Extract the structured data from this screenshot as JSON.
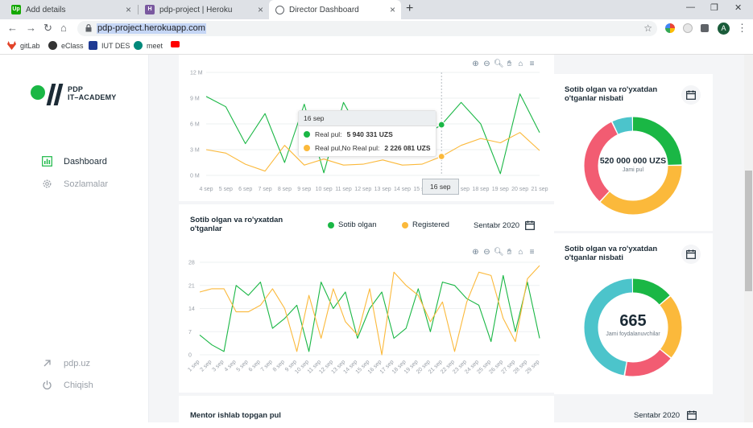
{
  "browser": {
    "tabs": [
      {
        "title": "Add details",
        "favicon": "upwork-icon",
        "favicon_text": "Up",
        "active": false
      },
      {
        "title": "pdp-project | Heroku",
        "favicon": "heroku-icon",
        "favicon_text": "H",
        "active": false
      },
      {
        "title": "Director Dashboard",
        "favicon": "globe-icon",
        "favicon_text": "",
        "active": true
      }
    ],
    "url": "pdp-project.herokuapp.com",
    "profile_initial": "A",
    "bookmarks": [
      {
        "label": "gitLab",
        "icon": "gitlab-icon",
        "color": "#e24329"
      },
      {
        "label": "eClass",
        "icon": "eclass-icon",
        "color": "#333333"
      },
      {
        "label": "IUT DES",
        "icon": "iut-icon",
        "color": "#1f3a93"
      },
      {
        "label": "meet",
        "icon": "meet-icon",
        "color": "#00897b"
      },
      {
        "label": "",
        "icon": "youtube-icon",
        "color": "#ff0000"
      }
    ]
  },
  "sidebar": {
    "logo_line1": "PDP",
    "logo_line2": "IT–ACADEMY",
    "nav": [
      {
        "label": "Dashboard",
        "icon": "chart-bar-icon",
        "active": true
      },
      {
        "label": "Sozlamalar",
        "icon": "gear-icon",
        "active": false
      }
    ],
    "footer": [
      {
        "label": "pdp.uz",
        "icon": "arrow-up-right-icon"
      },
      {
        "label": "Chiqish",
        "icon": "power-icon"
      }
    ]
  },
  "colors": {
    "green": "#1ab745",
    "orange": "#fbb93b",
    "red": "#f25c72",
    "teal": "#4cc4cb"
  },
  "chart1": {
    "chart_data": {
      "type": "line",
      "categories": [
        "4 sep",
        "5 sep",
        "6 sep",
        "7 sep",
        "8 sep",
        "9 sep",
        "10 sep",
        "11 sep",
        "12 sep",
        "13 sep",
        "14 sep",
        "15 sep",
        "16 sep",
        "17 sep",
        "18 sep",
        "19 sep",
        "20 sep",
        "21 sep"
      ],
      "y_ticks": [
        "0 M",
        "3 M",
        "6 M",
        "9 M",
        "12 M"
      ],
      "ylim": [
        0,
        12
      ],
      "series": [
        {
          "name": "Real pul",
          "color": "#1ab745",
          "values": [
            9.2,
            8.0,
            3.7,
            7.2,
            1.5,
            8.3,
            0.3,
            8.5,
            4.4,
            2.3,
            6.3,
            4.5,
            5.9,
            8.5,
            6.0,
            0.2,
            9.5,
            5.0
          ]
        },
        {
          "name": "Real pul,No Real pul",
          "color": "#fbb93b",
          "values": [
            3.0,
            2.6,
            1.3,
            0.5,
            3.5,
            1.2,
            1.9,
            1.2,
            1.3,
            1.8,
            1.2,
            1.3,
            2.2,
            3.5,
            4.3,
            3.8,
            5.0,
            2.9
          ]
        }
      ]
    },
    "tooltip": {
      "title": "16 sep",
      "rows": [
        {
          "label": "Real pul:",
          "value": "5 940 331 UZS",
          "color": "#1ab745"
        },
        {
          "label": "Real pul,No Real pul:",
          "value": "2 226 081 UZS",
          "color": "#fbb93b"
        }
      ]
    },
    "x_tooltip": "16 sep"
  },
  "chart2": {
    "title": "Sotib olgan va ro'yxatdan o'tganlar",
    "legend": [
      {
        "label": "Sotib olgan",
        "color": "#1ab745"
      },
      {
        "label": "Registered",
        "color": "#fbb93b"
      }
    ],
    "period": "Sentabr 2020",
    "chart_data": {
      "type": "line",
      "categories": [
        "1 sep",
        "2 sep",
        "3 sep",
        "4 sep",
        "5 sep",
        "6 sep",
        "7 sep",
        "8 sep",
        "9 sep",
        "10 sep",
        "11 sep",
        "12 sep",
        "13 sep",
        "14 sep",
        "15 sep",
        "16 sep",
        "17 sep",
        "18 sep",
        "19 sep",
        "20 sep",
        "21 sep",
        "22 sep",
        "23 sep",
        "24 sep",
        "25 sep",
        "26 sep",
        "27 sep",
        "28 sep",
        "29 sep"
      ],
      "y_ticks": [
        "0",
        "7",
        "14",
        "21",
        "28"
      ],
      "ylim": [
        0,
        28
      ],
      "series": [
        {
          "name": "Sotib olgan",
          "color": "#1ab745",
          "values": [
            6,
            3,
            1,
            21,
            18,
            22,
            8,
            11,
            15,
            1,
            22,
            14,
            19,
            5,
            14,
            19,
            5,
            8,
            20,
            7,
            22,
            21,
            17,
            15,
            4,
            24,
            7,
            22,
            5
          ]
        },
        {
          "name": "Registered",
          "color": "#fbb93b",
          "values": [
            19,
            20,
            20,
            13,
            13,
            15,
            20,
            14,
            1,
            18,
            5,
            20,
            10,
            6,
            20,
            0,
            25,
            21,
            18,
            10,
            16,
            1,
            16,
            25,
            24,
            11,
            4,
            23,
            27
          ]
        }
      ]
    }
  },
  "chart3": {
    "title": "Mentor ishlab topgan pul",
    "period": "Sentabr 2020"
  },
  "donut1": {
    "title": "Sotib olgan va ro'yxatdan o'tganlar nisbati",
    "value": "520 000 000 UZS",
    "label": "Jami pul",
    "chart_data": {
      "type": "pie",
      "slices": [
        {
          "value": 25,
          "color": "#1ab745"
        },
        {
          "value": 37,
          "color": "#fbb93b"
        },
        {
          "value": 31,
          "color": "#f25c72"
        },
        {
          "value": 7,
          "color": "#4cc4cb"
        }
      ]
    }
  },
  "donut2": {
    "title": "Sotib olgan va ro'yxatdan o'tganlar nisbati",
    "value": "665",
    "label": "Jami foydalanuvchilar",
    "chart_data": {
      "type": "pie",
      "slices": [
        {
          "value": 14,
          "color": "#1ab745"
        },
        {
          "value": 22,
          "color": "#fbb93b"
        },
        {
          "value": 17,
          "color": "#f25c72"
        },
        {
          "value": 47,
          "color": "#4cc4cb"
        }
      ]
    }
  }
}
